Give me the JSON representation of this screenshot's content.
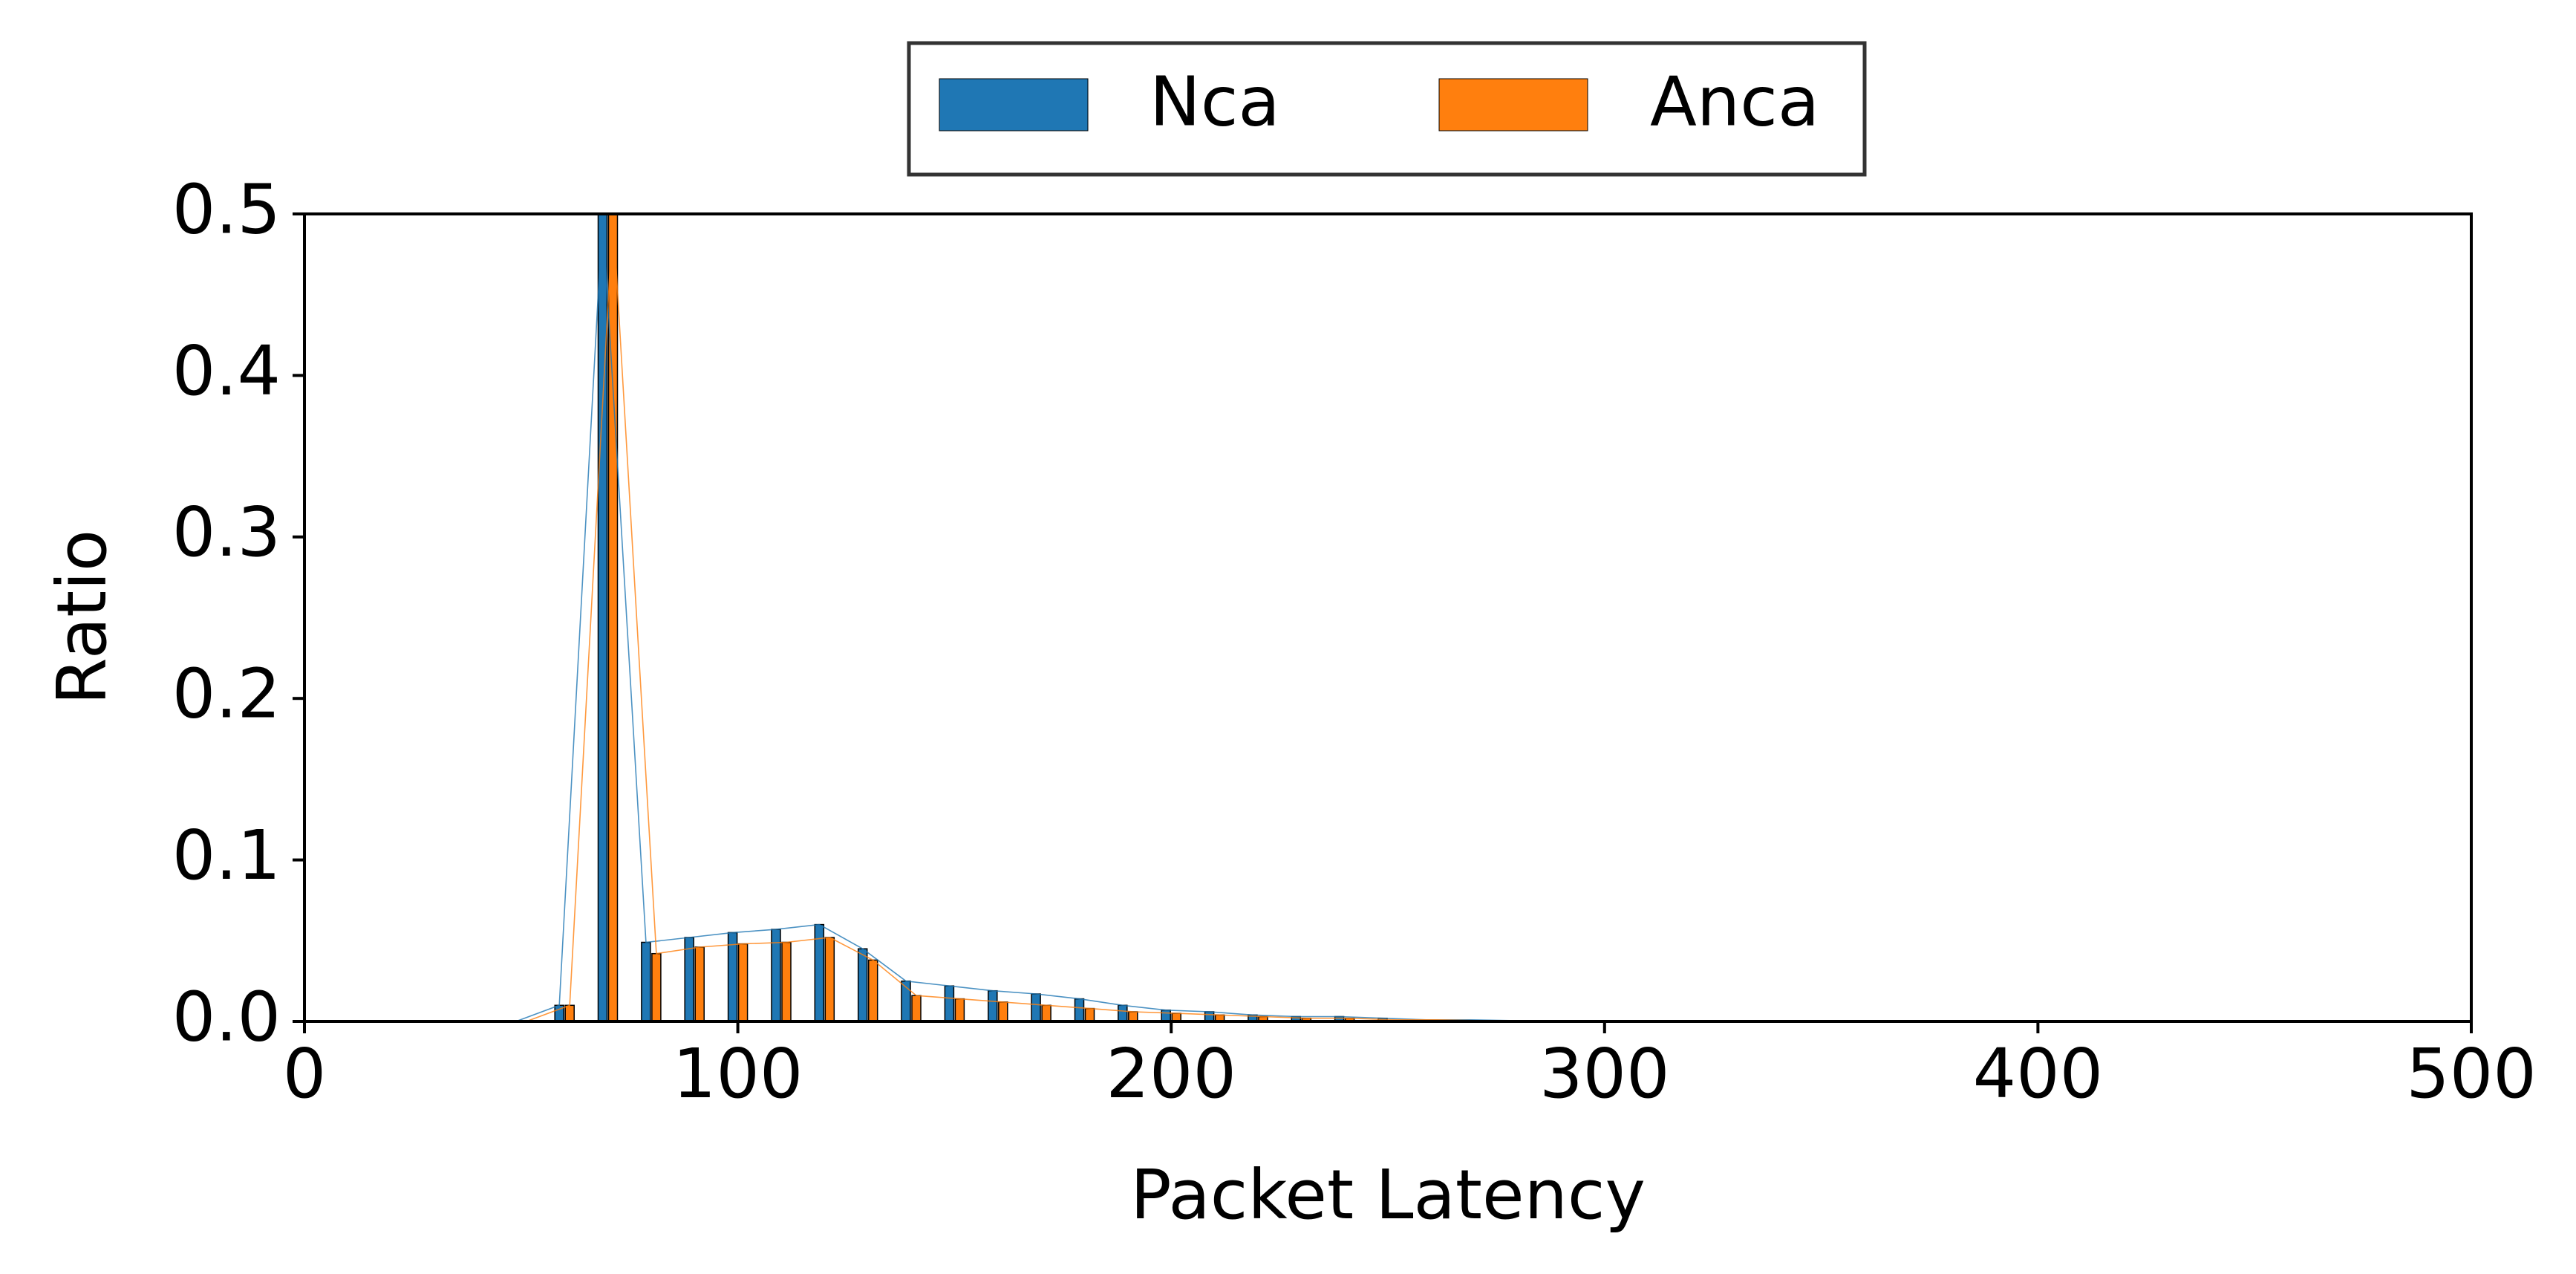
{
  "chart_data": {
    "type": "bar",
    "xlabel": "Packet Latency",
    "ylabel": "Ratio",
    "xlim": [
      0,
      500
    ],
    "ylim": [
      0,
      0.5
    ],
    "xticks": [
      "0",
      "100",
      "200",
      "300",
      "400",
      "500"
    ],
    "yticks": [
      "0.0",
      "0.1",
      "0.2",
      "0.3",
      "0.4",
      "0.5"
    ],
    "grid": false,
    "legend_position": "top-center",
    "x": [
      50,
      60,
      70,
      80,
      90,
      100,
      110,
      120,
      130,
      140,
      150,
      160,
      170,
      180,
      190,
      200,
      210,
      220,
      230,
      240,
      250,
      260,
      270,
      280,
      290,
      300
    ],
    "series": [
      {
        "name": "Nca",
        "color": "#1f77b4",
        "values": [
          0.0,
          0.01,
          0.5,
          0.049,
          0.052,
          0.055,
          0.057,
          0.06,
          0.045,
          0.025,
          0.022,
          0.019,
          0.017,
          0.014,
          0.01,
          0.007,
          0.006,
          0.004,
          0.003,
          0.003,
          0.002,
          0.001,
          0.001,
          0.0005,
          0.0003,
          0.0
        ]
      },
      {
        "name": "Anca",
        "color": "#ff7f0e",
        "values": [
          0.0,
          0.01,
          0.5,
          0.042,
          0.046,
          0.048,
          0.049,
          0.052,
          0.038,
          0.016,
          0.014,
          0.012,
          0.01,
          0.008,
          0.006,
          0.005,
          0.004,
          0.003,
          0.002,
          0.002,
          0.001,
          0.001,
          0.0005,
          0.0003,
          0.0002,
          0.0
        ]
      }
    ]
  }
}
